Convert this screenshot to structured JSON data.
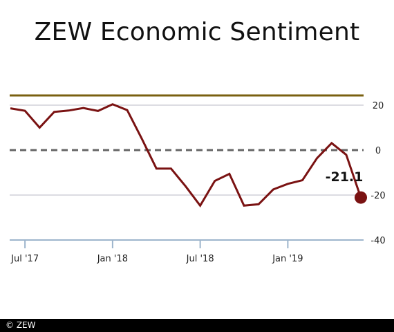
{
  "title": "ZEW Economic Sentiment",
  "footer": {
    "copyright": "© ZEW"
  },
  "colors": {
    "series": "#7a1212",
    "average_line": "#7a6010",
    "zero_line": "#666666",
    "grid": "#b9b9c6",
    "axis": "#9db5cc"
  },
  "chart_data": {
    "type": "line",
    "title": "ZEW Economic Sentiment",
    "xlabel": "",
    "ylabel": "",
    "ylim": [
      -40,
      26
    ],
    "yticks": [
      20,
      0,
      -20,
      -40
    ],
    "ytick_labels": [
      "20",
      "0",
      "-20",
      "-40"
    ],
    "x_tick_labels": [
      "Jul '17",
      "Jan '18",
      "Jul '18",
      "Jan '19"
    ],
    "x_tick_months": [
      "2017-07",
      "2018-01",
      "2018-07",
      "2019-01"
    ],
    "reference_line": 24.3,
    "zero_dashed": true,
    "grid": true,
    "series": [
      {
        "x": [
          "2017-06",
          "2017-07",
          "2017-08",
          "2017-09",
          "2017-10",
          "2017-11",
          "2017-12",
          "2018-01",
          "2018-02",
          "2018-03",
          "2018-04",
          "2018-05",
          "2018-06",
          "2018-07",
          "2018-08",
          "2018-09",
          "2018-10",
          "2018-11",
          "2018-12",
          "2019-01",
          "2019-02",
          "2019-03",
          "2019-04",
          "2019-05",
          "2019-06"
        ],
        "y": [
          18.6,
          17.5,
          10.0,
          17.0,
          17.6,
          18.7,
          17.4,
          20.4,
          17.8,
          5.1,
          -8.2,
          -8.2,
          -16.1,
          -24.7,
          -13.7,
          -10.6,
          -24.7,
          -24.1,
          -17.5,
          -15.0,
          -13.4,
          -3.6,
          3.1,
          -2.1,
          -21.1
        ]
      }
    ],
    "annotations": [
      "-21.1"
    ]
  }
}
